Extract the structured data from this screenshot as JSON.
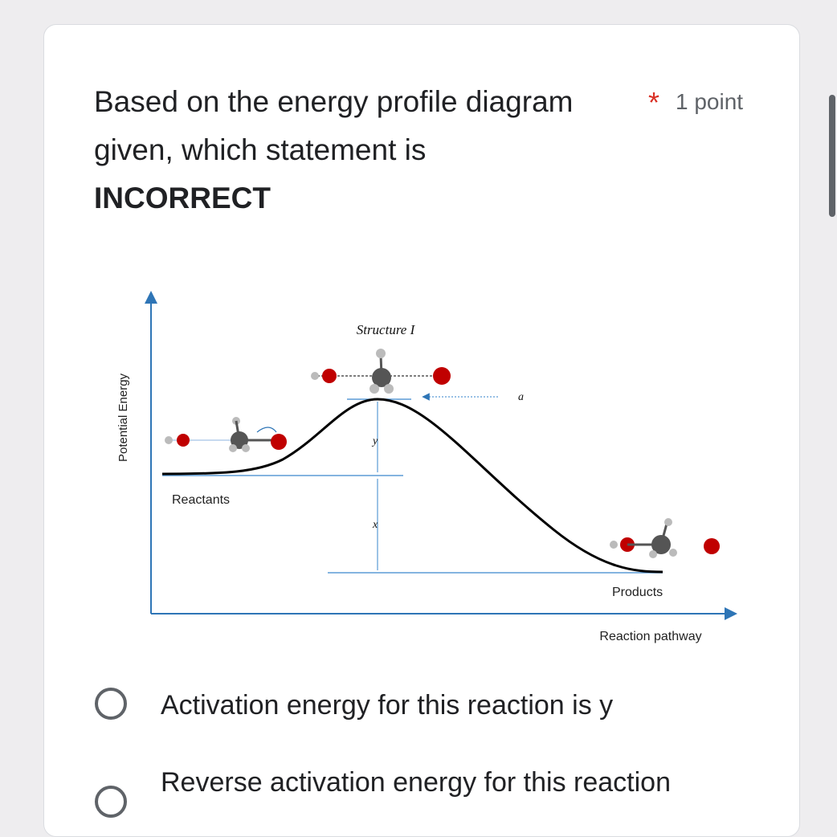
{
  "question": {
    "title_line1": "Based on the energy profile diagram",
    "title_line2": "given, which statement is",
    "title_line3": "INCORRECT",
    "required_mark": "*",
    "points": "1 point"
  },
  "diagram": {
    "y_axis_label": "Potential Energy",
    "x_axis_label": "Reaction pathway",
    "structure_label": "Structure I",
    "label_a": "a",
    "label_y": "y",
    "label_x": "x",
    "reactants_label": "Reactants",
    "products_label": "Products",
    "colors": {
      "curve": "#000000",
      "guide_lines": "#5b9bd5",
      "oxygen": "#c00000",
      "carbon": "#555555",
      "hydrogen": "#bbbbbb",
      "axis": "#2e75b6"
    }
  },
  "options": [
    {
      "label": "Activation energy for this reaction is y"
    },
    {
      "label": "Reverse activation energy for this reaction"
    }
  ]
}
